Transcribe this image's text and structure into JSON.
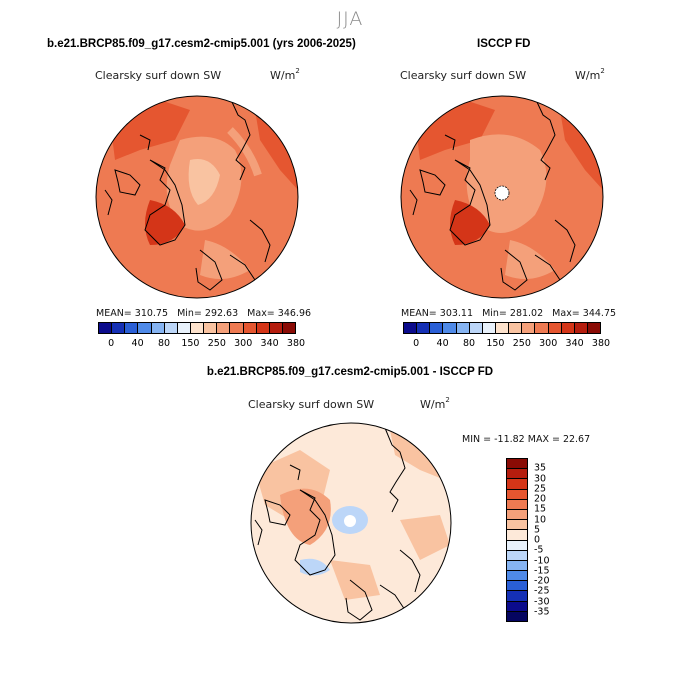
{
  "season": "JJA",
  "panels": {
    "model": {
      "title": "b.e21.BRCP85.f09_g17.cesm2-cmip5.001 (yrs 2006-2025)",
      "var_label": "Clearsky surf down SW",
      "units_base": "W/m",
      "units_exp": "2",
      "stats": {
        "mean": "MEAN= 310.75",
        "min": "Min= 292.63",
        "max": "Max= 346.96"
      }
    },
    "obs": {
      "title": "ISCCP FD",
      "var_label": "Clearsky surf down SW",
      "units_base": "W/m",
      "units_exp": "2",
      "stats": {
        "mean": "MEAN= 303.11",
        "min": "Min= 281.02",
        "max": "Max= 344.75"
      }
    },
    "diff": {
      "title": "b.e21.BRCP85.f09_g17.cesm2-cmip5.001 - ISCCP FD",
      "var_label": "Clearsky surf down SW",
      "units_base": "W/m",
      "units_exp": "2",
      "stats_line": "MIN = -11.82  MAX =  22.67"
    }
  },
  "chart_data": [
    {
      "type": "heatmap",
      "projection": "north polar stereographic",
      "title": "b.e21.BRCP85.f09_g17.cesm2-cmip5.001 (yrs 2006-2025)",
      "variable": "Clearsky surf down SW",
      "units": "W/m2",
      "mean": 310.75,
      "min": 292.63,
      "max": 346.96,
      "colorbar": {
        "tick_labels": [
          "0",
          "40",
          "80",
          "150",
          "250",
          "300",
          "340",
          "380"
        ],
        "colors": [
          "#0b0b8c",
          "#1530b5",
          "#2a5fd6",
          "#4f8ae8",
          "#86b4f2",
          "#bcd6f8",
          "#e8f1fb",
          "#fde2cc",
          "#f9c3a1",
          "#f4a07a",
          "#ee7a52",
          "#e55630",
          "#d43518",
          "#b51d0e",
          "#8a0b05"
        ]
      }
    },
    {
      "type": "heatmap",
      "projection": "north polar stereographic",
      "title": "ISCCP FD",
      "variable": "Clearsky surf down SW",
      "units": "W/m2",
      "mean": 303.11,
      "min": 281.02,
      "max": 344.75,
      "colorbar": {
        "tick_labels": [
          "0",
          "40",
          "80",
          "150",
          "250",
          "300",
          "340",
          "380"
        ],
        "colors": [
          "#0b0b8c",
          "#1530b5",
          "#2a5fd6",
          "#4f8ae8",
          "#86b4f2",
          "#bcd6f8",
          "#e8f1fb",
          "#fde2cc",
          "#f9c3a1",
          "#f4a07a",
          "#ee7a52",
          "#e55630",
          "#d43518",
          "#b51d0e",
          "#8a0b05"
        ]
      }
    },
    {
      "type": "heatmap",
      "projection": "north polar stereographic",
      "title": "b.e21.BRCP85.f09_g17.cesm2-cmip5.001 - ISCCP FD",
      "variable": "Clearsky surf down SW",
      "units": "W/m2",
      "min": -11.82,
      "max": 22.67,
      "colorbar": {
        "tick_labels": [
          "35",
          "30",
          "25",
          "20",
          "15",
          "10",
          "5",
          "0",
          "-5",
          "-10",
          "-15",
          "-20",
          "-25",
          "-30",
          "-35"
        ],
        "colors": [
          "#8a0b05",
          "#b51d0e",
          "#d43518",
          "#e55630",
          "#ee7a52",
          "#f4a07a",
          "#f9c3a1",
          "#fde9d9",
          "#e8f1fb",
          "#bcd6f8",
          "#86b4f2",
          "#4f8ae8",
          "#2a5fd6",
          "#1530b5",
          "#0b0b8c",
          "#050560"
        ]
      }
    }
  ]
}
